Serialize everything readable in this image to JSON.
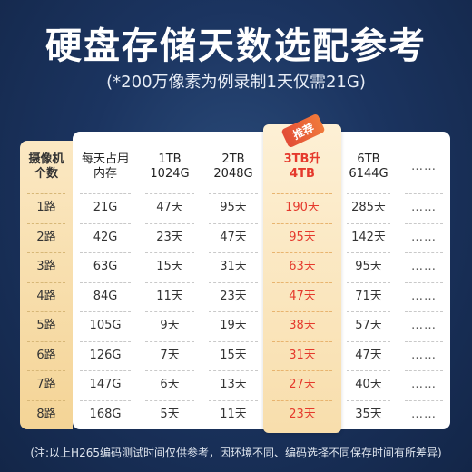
{
  "title": "硬盘存储天数选配参考",
  "subtitle": "(*200万像素为例录制1天仅需21G)",
  "badge": "推荐",
  "footnote": "(注:以上H265编码测试时间仅供参考，因环境不同、编码选择不同保存时间有所差异)",
  "headers": [
    "摄像机\n个数",
    "每天占用\n内存",
    "1TB\n1024G",
    "2TB\n2048G",
    "3TB升\n4TB",
    "6TB\n6144G",
    "……"
  ],
  "rows": [
    [
      "1路",
      "21G",
      "47天",
      "95天",
      "190天",
      "285天",
      "……"
    ],
    [
      "2路",
      "42G",
      "23天",
      "47天",
      "95天",
      "142天",
      "……"
    ],
    [
      "3路",
      "63G",
      "15天",
      "31天",
      "63天",
      "95天",
      "……"
    ],
    [
      "4路",
      "84G",
      "11天",
      "23天",
      "47天",
      "71天",
      "……"
    ],
    [
      "5路",
      "105G",
      "9天",
      "19天",
      "38天",
      "57天",
      "……"
    ],
    [
      "6路",
      "126G",
      "7天",
      "15天",
      "31天",
      "47天",
      "……"
    ],
    [
      "7路",
      "147G",
      "6天",
      "13天",
      "27天",
      "40天",
      "……"
    ],
    [
      "8路",
      "168G",
      "5天",
      "11天",
      "23天",
      "35天",
      "……"
    ]
  ],
  "colors": {
    "highlight": "#e5392c",
    "background": "#1b3460",
    "gold": "#f4d496"
  }
}
